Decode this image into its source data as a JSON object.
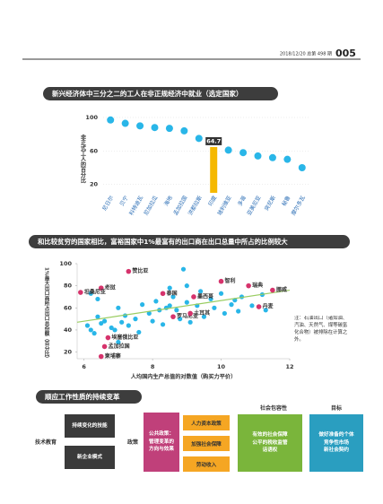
{
  "header": {
    "date_issue": "2018/12/20 总第 498 期",
    "page": "005"
  },
  "chart_data": [
    {
      "type": "dot",
      "title": "新兴经济体中三分之二的工人在非正规经济中就业（选定国家）",
      "y_label": "非正式工人的百分比",
      "categories": [
        "尼日尔",
        "贝宁",
        "科特迪瓦",
        "尼加拉瓜",
        "海地",
        "孟加拉国",
        "洪都拉斯",
        "印度",
        "玻利维亚",
        "多哥",
        "亚美尼亚",
        "突尼斯",
        "秘鲁",
        "摩尔多瓦"
      ],
      "values": [
        97,
        93,
        90,
        88,
        87,
        84,
        75,
        64.7,
        61,
        58,
        54,
        52,
        50,
        40
      ],
      "highlight": "印度",
      "color": "#29b6e8",
      "highlight_color": "#f5b800",
      "ylim": [
        10,
        100
      ],
      "yticks": [
        20,
        60,
        100
      ],
      "grid": true
    },
    {
      "type": "scatter",
      "title": "和比较贫穷的国家相比，富裕国家中1%最富有的出口商在出口总量中所占的比例较大",
      "x_label": "人均国内生产总值的对数值（购买力平价）",
      "y_label": "1%最大出口商所占出口总份额（百分比）",
      "note": "注：石油出口（诸如油、汽油、天然气、煤等碳氢化合物）被排除在计算之外。",
      "highlighted": {
        "color": "#d6336c",
        "labels": [
          "赞比亚",
          "老挝",
          "坦桑尼亚",
          "埃塞俄比亚",
          "孟加拉国",
          "柬埔寨",
          "智利",
          "泰国",
          "墨西哥",
          "罗马尼亚",
          "土耳其",
          "瑞典",
          "挪威",
          "丹麦"
        ],
        "x": [
          7.3,
          6.5,
          5.9,
          6.7,
          6.6,
          6.5,
          10.0,
          8.3,
          9.2,
          8.6,
          9.1,
          10.8,
          11.5,
          11.1
        ],
        "y": [
          93,
          78,
          74,
          33,
          25,
          16,
          84,
          73,
          70,
          52,
          55,
          80,
          76,
          61
        ]
      },
      "others": {
        "color": "#29b6e8",
        "x": [
          6.1,
          6.2,
          6.3,
          6.4,
          6.5,
          6.6,
          6.8,
          6.9,
          7.0,
          7.1,
          7.2,
          7.3,
          7.5,
          7.6,
          7.7,
          7.9,
          8.0,
          8.1,
          8.2,
          8.3,
          8.4,
          8.5,
          8.5,
          8.6,
          8.7,
          8.8,
          8.9,
          9.0,
          9.0,
          9.1,
          9.3,
          9.4,
          9.5,
          9.7,
          9.8,
          10.0,
          10.1,
          10.3,
          10.4,
          10.5,
          10.6,
          10.9,
          11.2,
          11.3,
          6.2,
          6.4,
          7.0
        ],
        "y": [
          44,
          40,
          37,
          52,
          46,
          48,
          42,
          40,
          60,
          47,
          53,
          44,
          50,
          38,
          63,
          55,
          48,
          66,
          58,
          45,
          60,
          62,
          78,
          70,
          58,
          50,
          95,
          65,
          80,
          47,
          62,
          75,
          52,
          68,
          60,
          73,
          55,
          63,
          67,
          57,
          70,
          62,
          72,
          58,
          73,
          68,
          29
        ]
      },
      "trend": {
        "color": "#9acd62",
        "x": [
          5.8,
          12
        ],
        "y": [
          47,
          76
        ]
      },
      "xlim": [
        5.8,
        12
      ],
      "xticks": [
        6,
        8,
        10,
        12
      ],
      "ylim": [
        14,
        100
      ],
      "yticks": [
        20,
        40,
        60,
        80,
        100
      ]
    }
  ],
  "diagram": {
    "title": "顺应工作性质的持续变革",
    "row_labels": [
      "技术教育",
      "政策"
    ],
    "column_labels": [
      "社会包容性",
      "目标"
    ],
    "drivers": [
      "持续变化的技能",
      "新企业模式"
    ],
    "public_policy": "公共政策：\n管理变革的\n方向与效果",
    "policies": [
      "人力资本政策",
      "加强社会保障",
      "劳动收入"
    ],
    "inclusion": "有效的社会保障\n公平的税收监管\n话语权",
    "goals": "做好准备的个体\n竞争性市场\n新社会契约"
  }
}
